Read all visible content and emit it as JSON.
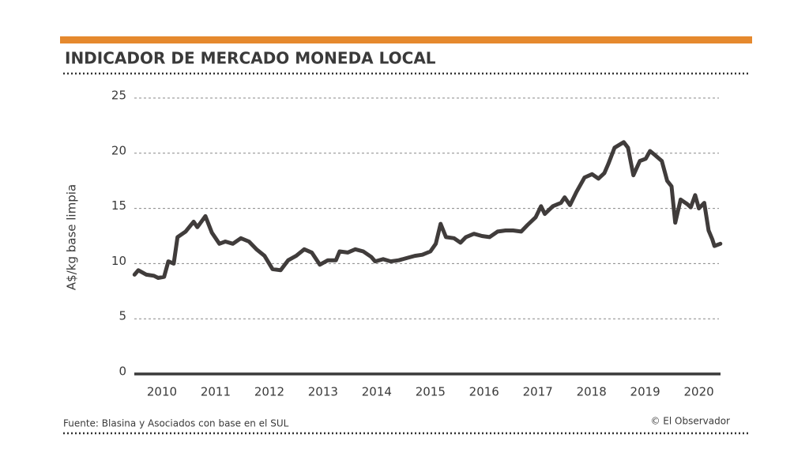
{
  "chart_data": {
    "type": "line",
    "title": "INDICADOR DE MERCADO MONEDA LOCAL",
    "y_label": "A$/kg  base limpia",
    "source": "Fuente: Blasina y Asociados con base en el SUL",
    "credit": "© El Observador",
    "x": [
      2009.49,
      2009.56,
      2009.71,
      2009.85,
      2009.93,
      2010.04,
      2010.12,
      2010.22,
      2010.29,
      2010.44,
      2010.59,
      2010.66,
      2010.81,
      2010.93,
      2011.07,
      2011.18,
      2011.32,
      2011.47,
      2011.62,
      2011.76,
      2011.91,
      2012.06,
      2012.21,
      2012.35,
      2012.5,
      2012.65,
      2012.79,
      2012.94,
      2013.09,
      2013.24,
      2013.31,
      2013.46,
      2013.6,
      2013.75,
      2013.9,
      2013.97,
      2014.12,
      2014.26,
      2014.41,
      2014.56,
      2014.71,
      2014.85,
      2015.0,
      2015.1,
      2015.19,
      2015.29,
      2015.44,
      2015.56,
      2015.66,
      2015.81,
      2015.96,
      2016.1,
      2016.25,
      2016.4,
      2016.54,
      2016.69,
      2016.81,
      2016.96,
      2017.06,
      2017.13,
      2017.28,
      2017.43,
      2017.5,
      2017.6,
      2017.72,
      2017.87,
      2018.01,
      2018.13,
      2018.24,
      2018.31,
      2018.43,
      2018.6,
      2018.68,
      2018.78,
      2018.9,
      2019.01,
      2019.09,
      2019.19,
      2019.31,
      2019.41,
      2019.49,
      2019.56,
      2019.66,
      2019.78,
      2019.85,
      2019.93,
      2020.0,
      2020.1,
      2020.18,
      2020.25,
      2020.29,
      2020.4
    ],
    "series": [
      {
        "name": "Indicador",
        "color": "#403c3b",
        "values": [
          9.0,
          9.4,
          9.0,
          8.9,
          8.7,
          8.8,
          10.2,
          10.0,
          12.4,
          12.9,
          13.8,
          13.3,
          14.3,
          12.8,
          11.8,
          12.0,
          11.8,
          12.3,
          12.0,
          11.3,
          10.7,
          9.5,
          9.4,
          10.3,
          10.7,
          11.3,
          11.0,
          9.9,
          10.3,
          10.3,
          11.1,
          11.0,
          11.3,
          11.1,
          10.6,
          10.2,
          10.4,
          10.2,
          10.3,
          10.5,
          10.7,
          10.8,
          11.1,
          11.8,
          13.6,
          12.4,
          12.3,
          11.9,
          12.4,
          12.7,
          12.5,
          12.4,
          12.9,
          13.0,
          13.0,
          12.9,
          13.5,
          14.2,
          15.2,
          14.5,
          15.2,
          15.5,
          16.0,
          15.3,
          16.5,
          17.8,
          18.1,
          17.7,
          18.2,
          19.0,
          20.5,
          21.0,
          20.5,
          18.0,
          19.3,
          19.5,
          20.2,
          19.8,
          19.3,
          17.5,
          17.0,
          13.7,
          15.8,
          15.4,
          15.1,
          16.2,
          15.0,
          15.5,
          13.0,
          12.2,
          11.6,
          11.8
        ]
      }
    ],
    "xlim": [
      2009.45,
      2020.55
    ],
    "xticks": [
      2010,
      2011,
      2012,
      2013,
      2014,
      2015,
      2016,
      2017,
      2018,
      2019,
      2020
    ],
    "ylim": [
      0,
      25
    ],
    "yticks": [
      0,
      5,
      10,
      15,
      20,
      25
    ],
    "grid": true
  }
}
